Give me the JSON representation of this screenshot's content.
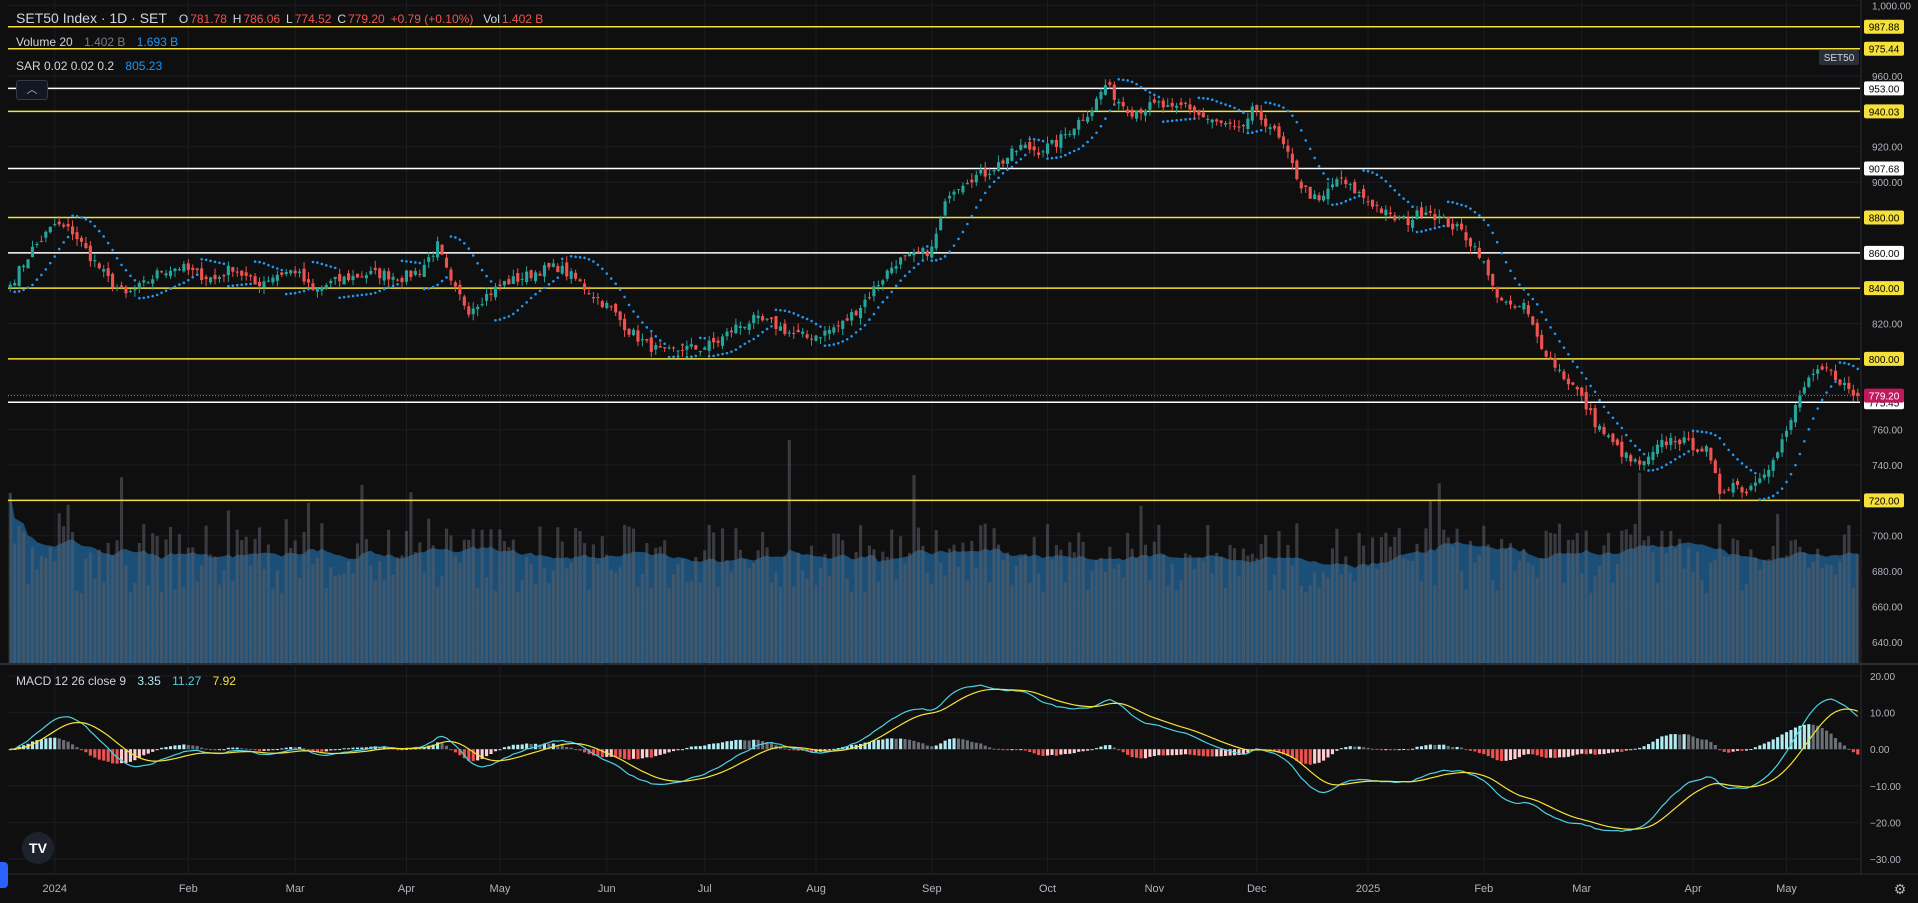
{
  "header": {
    "symbol": "SET50 Index · 1D · SET",
    "o_label": "O",
    "o_value": "781.78",
    "h_label": "H",
    "h_value": "786.06",
    "l_label": "L",
    "l_value": "774.52",
    "c_label": "C",
    "c_value": "779.20",
    "change": "+0.79 (+0.10%)",
    "vol_label": "Vol",
    "vol_value": "1.402 B"
  },
  "volume_legend": {
    "label": "Volume 20",
    "v1": "1.402 B",
    "v2": "1.693 B"
  },
  "sar_legend": {
    "label": "SAR 0.02 0.02 0.2",
    "value": "805.23"
  },
  "macd_legend": {
    "label": "MACD 12 26 close 9",
    "v1": "3.35",
    "v2": "11.27",
    "v3": "7.92"
  },
  "symbol_tag": "SET50",
  "logo_text": "TV",
  "settings_icon": "gear-icon",
  "colors": {
    "up": "#26a69a",
    "down": "#ef5350",
    "yellow": "#f5e13a",
    "white": "#ffffff",
    "sar": "#2196f3",
    "volume_ma": "#1e5a8a",
    "macd": "#4dd0e1",
    "signal": "#f5e13a",
    "hist_pos": "#b2ebf2",
    "hist_neg": "#ef5350",
    "current": "#c2185b"
  },
  "chart_data": {
    "type": "candlestick",
    "price_axis": {
      "ylim": [
        628,
        1003
      ],
      "ticks": [
        "1,000.00",
        "960.00",
        "920.00",
        "900.00",
        "860.00",
        "820.00",
        "800.00",
        "780.00",
        "760.00",
        "740.00",
        "720.00",
        "700.00",
        "680.00",
        "660.00",
        "640.00"
      ],
      "tick_values": [
        1000,
        960,
        920,
        900,
        860,
        820,
        800,
        780,
        760,
        740,
        720,
        700,
        680,
        660,
        640
      ]
    },
    "horizontal_levels": [
      {
        "value": 987.88,
        "label": "987.88",
        "color": "yellow"
      },
      {
        "value": 975.44,
        "label": "975.44",
        "color": "yellow"
      },
      {
        "value": 953.0,
        "label": "953.00",
        "color": "white"
      },
      {
        "value": 940.03,
        "label": "940.03",
        "color": "yellow"
      },
      {
        "value": 907.68,
        "label": "907.68",
        "color": "white"
      },
      {
        "value": 880.0,
        "label": "880.00",
        "color": "yellow"
      },
      {
        "value": 860.0,
        "label": "860.00",
        "color": "white"
      },
      {
        "value": 840.0,
        "label": "840.00",
        "color": "yellow"
      },
      {
        "value": 800.0,
        "label": "800.00",
        "color": "yellow"
      },
      {
        "value": 775.45,
        "label": "775.45",
        "color": "white"
      },
      {
        "value": 720.0,
        "label": "720.00",
        "color": "yellow"
      }
    ],
    "current_price": {
      "value": 779.2,
      "label": "779.20"
    },
    "x_axis": {
      "labels": [
        "2024",
        "Feb",
        "Mar",
        "Apr",
        "May",
        "Jun",
        "Jul",
        "Aug",
        "Sep",
        "Oct",
        "Nov",
        "Dec",
        "2025",
        "Feb",
        "Mar",
        "Apr",
        "May"
      ],
      "label_bar_index": [
        10,
        40,
        64,
        89,
        110,
        134,
        156,
        181,
        207,
        233,
        257,
        280,
        305,
        331,
        353,
        378,
        399
      ]
    },
    "close_anchors": [
      [
        0,
        842
      ],
      [
        5,
        862
      ],
      [
        10,
        876
      ],
      [
        14,
        872
      ],
      [
        18,
        858
      ],
      [
        22,
        845
      ],
      [
        26,
        836
      ],
      [
        30,
        842
      ],
      [
        34,
        850
      ],
      [
        38,
        852
      ],
      [
        42,
        848
      ],
      [
        46,
        845
      ],
      [
        50,
        852
      ],
      [
        55,
        842
      ],
      [
        60,
        848
      ],
      [
        64,
        850
      ],
      [
        68,
        838
      ],
      [
        72,
        843
      ],
      [
        76,
        846
      ],
      [
        80,
        848
      ],
      [
        84,
        848
      ],
      [
        88,
        846
      ],
      [
        92,
        850
      ],
      [
        96,
        864
      ],
      [
        99,
        842
      ],
      [
        103,
        828
      ],
      [
        107,
        836
      ],
      [
        111,
        843
      ],
      [
        115,
        846
      ],
      [
        119,
        850
      ],
      [
        123,
        852
      ],
      [
        127,
        845
      ],
      [
        131,
        836
      ],
      [
        135,
        828
      ],
      [
        139,
        816
      ],
      [
        143,
        808
      ],
      [
        147,
        803
      ],
      [
        151,
        806
      ],
      [
        155,
        806
      ],
      [
        159,
        810
      ],
      [
        163,
        818
      ],
      [
        167,
        822
      ],
      [
        171,
        820
      ],
      [
        175,
        815
      ],
      [
        179,
        812
      ],
      [
        183,
        815
      ],
      [
        187,
        820
      ],
      [
        191,
        830
      ],
      [
        195,
        843
      ],
      [
        199,
        855
      ],
      [
        203,
        858
      ],
      [
        207,
        862
      ],
      [
        211,
        895
      ],
      [
        215,
        902
      ],
      [
        219,
        905
      ],
      [
        223,
        912
      ],
      [
        227,
        920
      ],
      [
        231,
        918
      ],
      [
        235,
        922
      ],
      [
        239,
        932
      ],
      [
        243,
        942
      ],
      [
        246,
        955
      ],
      [
        249,
        946
      ],
      [
        252,
        940
      ],
      [
        255,
        942
      ],
      [
        258,
        944
      ],
      [
        261,
        940
      ],
      [
        264,
        944
      ],
      [
        267,
        938
      ],
      [
        270,
        934
      ],
      [
        273,
        932
      ],
      [
        276,
        928
      ],
      [
        279,
        940
      ],
      [
        283,
        932
      ],
      [
        286,
        920
      ],
      [
        290,
        898
      ],
      [
        294,
        888
      ],
      [
        298,
        902
      ],
      [
        302,
        895
      ],
      [
        306,
        888
      ],
      [
        310,
        880
      ],
      [
        314,
        878
      ],
      [
        318,
        885
      ],
      [
        322,
        878
      ],
      [
        326,
        872
      ],
      [
        330,
        860
      ],
      [
        333,
        840
      ],
      [
        337,
        828
      ],
      [
        340,
        830
      ],
      [
        343,
        812
      ],
      [
        346,
        800
      ],
      [
        349,
        790
      ],
      [
        352,
        782
      ],
      [
        356,
        764
      ],
      [
        360,
        752
      ],
      [
        364,
        742
      ],
      [
        367,
        740
      ],
      [
        371,
        752
      ],
      [
        374,
        755
      ],
      [
        377,
        752
      ],
      [
        381,
        748
      ],
      [
        384,
        725
      ],
      [
        387,
        730
      ],
      [
        390,
        725
      ],
      [
        393,
        735
      ],
      [
        396,
        742
      ],
      [
        399,
        758
      ],
      [
        402,
        780
      ],
      [
        405,
        790
      ],
      [
        408,
        794
      ],
      [
        411,
        788
      ],
      [
        414,
        779.2
      ]
    ],
    "volume": {
      "scale_max": 3.0,
      "ma_period": 20
    },
    "sar_params": {
      "step": 0.02,
      "start": 0.02,
      "max": 0.2
    },
    "macd_axis": {
      "ylim": [
        -33,
        23
      ],
      "ticks": [
        "20.00",
        "10.00",
        "0.00",
        "−10.00",
        "−20.00",
        "−30.00"
      ],
      "tick_values": [
        20,
        10,
        0,
        -10,
        -20,
        -30
      ]
    },
    "macd_params": {
      "fast": 12,
      "slow": 26,
      "signal": 9,
      "source": "close"
    }
  }
}
